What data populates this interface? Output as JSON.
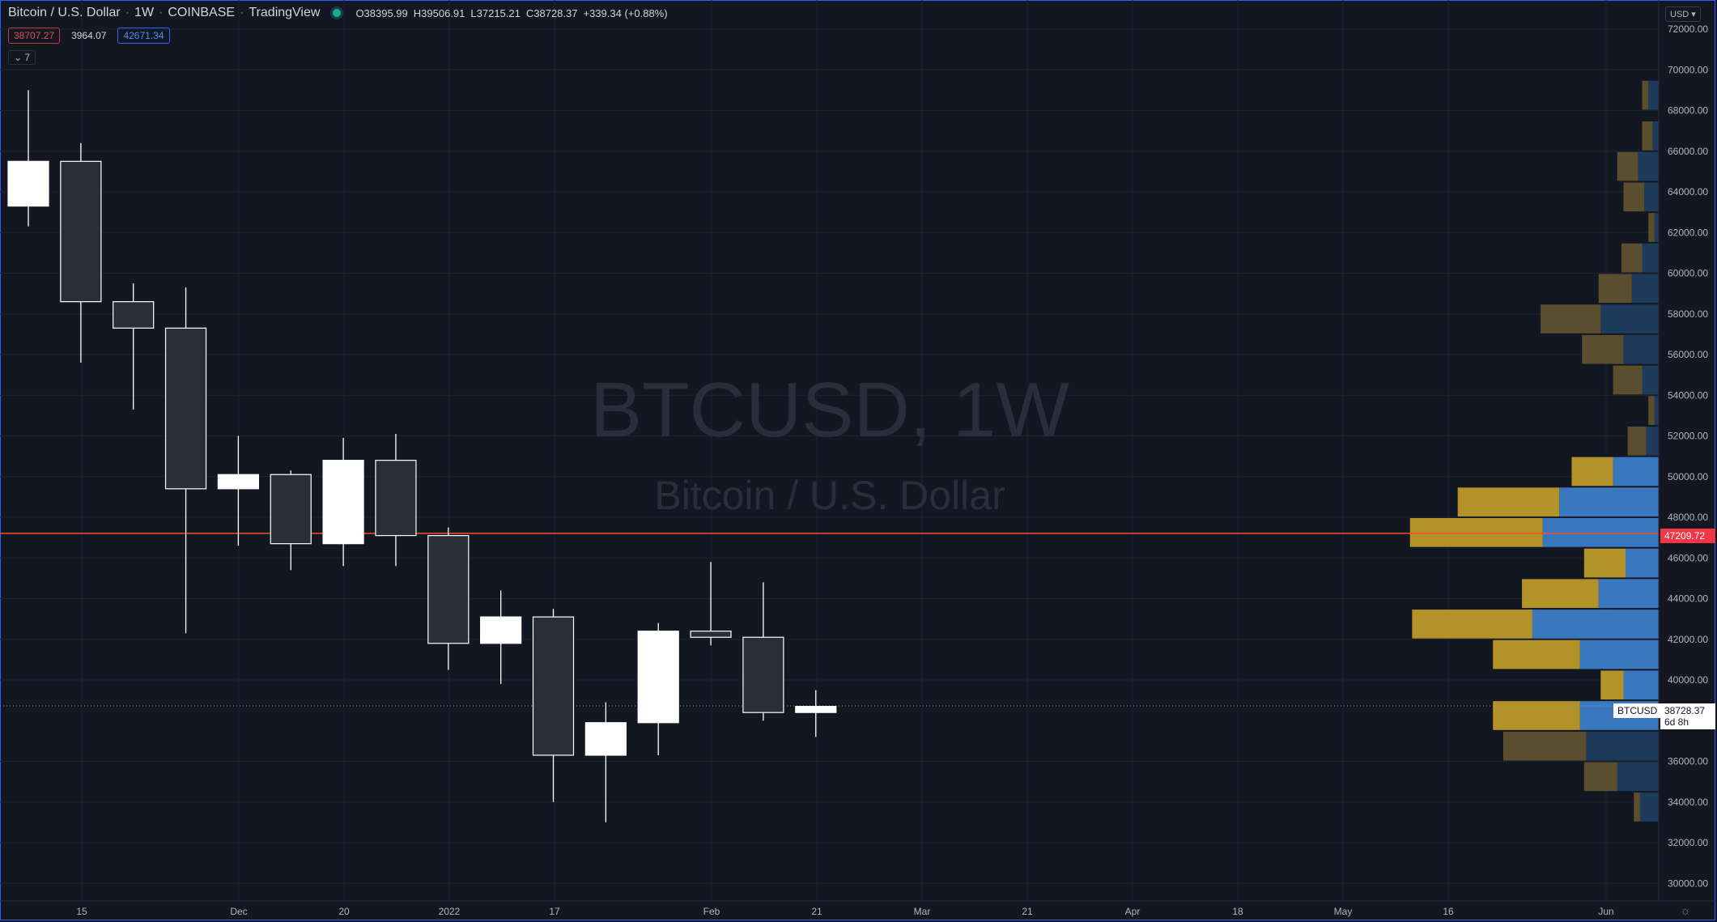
{
  "legend": {
    "symbol": "Bitcoin / U.S. Dollar",
    "interval": "1W",
    "exchange": "COINBASE",
    "source": "TradingView",
    "open": "O38395.99",
    "high": "H39506.91",
    "low": "L37215.21",
    "close": "C38728.37",
    "change": "+339.34 (+0.88%)"
  },
  "volume_profile_legend": {
    "down_value": "38707.27",
    "delta_value": "3964.07",
    "up_value": "42671.34"
  },
  "collapse_button": {
    "label": "7"
  },
  "currency_button": {
    "label": "USD"
  },
  "watermark": {
    "title": "BTCUSD, 1W",
    "subtitle": "Bitcoin / U.S. Dollar"
  },
  "price_tags": {
    "hline_price": "47209.72",
    "last_symbol": "BTCUSD",
    "last_price": "38728.37",
    "countdown": "6d 8h"
  },
  "colors": {
    "background": "#131722",
    "candle_up": "#ffffff",
    "candle_down": "#2a2e39",
    "hline": "#f24f2a",
    "vp_up": "#b39329",
    "vp_down": "#3978bf",
    "vp_up_dim": "#5a4e2e",
    "vp_down_dim": "#1f3b5c"
  },
  "chart_data": {
    "type": "candlestick",
    "x_tick_labels": [
      "15",
      "Dec",
      "20",
      "2022",
      "17",
      "Feb",
      "21",
      "Mar",
      "21",
      "Apr",
      "18",
      "May",
      "16",
      "Jun"
    ],
    "y_tick_labels": [
      "72000.00",
      "70000.00",
      "68000.00",
      "66000.00",
      "64000.00",
      "62000.00",
      "60000.00",
      "58000.00",
      "56000.00",
      "54000.00",
      "52000.00",
      "50000.00",
      "48000.00",
      "46000.00",
      "44000.00",
      "42000.00",
      "40000.00",
      "36000.00",
      "34000.00",
      "32000.00",
      "30000.00"
    ],
    "ylim": [
      29600,
      72800
    ],
    "candles": [
      {
        "o": 63300,
        "h": 69000,
        "l": 62300,
        "c": 65500
      },
      {
        "o": 65500,
        "h": 66400,
        "l": 55600,
        "c": 58600
      },
      {
        "o": 58600,
        "h": 59500,
        "l": 53300,
        "c": 57300
      },
      {
        "o": 57300,
        "h": 59300,
        "l": 42300,
        "c": 49400
      },
      {
        "o": 49400,
        "h": 52000,
        "l": 46600,
        "c": 50100
      },
      {
        "o": 50100,
        "h": 50300,
        "l": 45400,
        "c": 46700
      },
      {
        "o": 46700,
        "h": 51900,
        "l": 45600,
        "c": 50800
      },
      {
        "o": 50800,
        "h": 52100,
        "l": 45600,
        "c": 47100
      },
      {
        "o": 47100,
        "h": 47500,
        "l": 40500,
        "c": 41800
      },
      {
        "o": 41800,
        "h": 44400,
        "l": 39800,
        "c": 43100
      },
      {
        "o": 43100,
        "h": 43500,
        "l": 34000,
        "c": 36300
      },
      {
        "o": 36300,
        "h": 38900,
        "l": 33000,
        "c": 37900
      },
      {
        "o": 37900,
        "h": 42800,
        "l": 36300,
        "c": 42400
      },
      {
        "o": 42400,
        "h": 45800,
        "l": 41700,
        "c": 42100
      },
      {
        "o": 42100,
        "h": 44800,
        "l": 38000,
        "c": 38400
      },
      {
        "o": 38400,
        "h": 39500,
        "l": 37200,
        "c": 38700
      }
    ],
    "horizontal_line": 47209.72,
    "last_price": 38728.37,
    "volume_profile": [
      {
        "price_low": 68000,
        "price_high": 69500,
        "up": 0.3,
        "down": 0.5,
        "dim": true
      },
      {
        "price_low": 66000,
        "price_high": 67500,
        "up": 0.5,
        "down": 0.3,
        "dim": true
      },
      {
        "price_low": 64500,
        "price_high": 66000,
        "up": 1.0,
        "down": 1.0,
        "dim": true
      },
      {
        "price_low": 63000,
        "price_high": 64500,
        "up": 1.0,
        "down": 0.7,
        "dim": true
      },
      {
        "price_low": 61500,
        "price_high": 63000,
        "up": 0.3,
        "down": 0.2,
        "dim": true
      },
      {
        "price_low": 60000,
        "price_high": 61500,
        "up": 1.0,
        "down": 0.8,
        "dim": true
      },
      {
        "price_low": 58500,
        "price_high": 60000,
        "up": 1.6,
        "down": 1.3,
        "dim": true
      },
      {
        "price_low": 57000,
        "price_high": 58500,
        "up": 2.9,
        "down": 2.8,
        "dim": true
      },
      {
        "price_low": 55500,
        "price_high": 57000,
        "up": 2.0,
        "down": 1.7,
        "dim": true
      },
      {
        "price_low": 54000,
        "price_high": 55500,
        "up": 1.4,
        "down": 0.8,
        "dim": true
      },
      {
        "price_low": 52500,
        "price_high": 54000,
        "up": 0.3,
        "down": 0.2,
        "dim": true
      },
      {
        "price_low": 51000,
        "price_high": 52500,
        "up": 0.9,
        "down": 0.6,
        "dim": true
      },
      {
        "price_low": 49500,
        "price_high": 51000,
        "up": 2.0,
        "down": 2.2,
        "dim": false
      },
      {
        "price_low": 48000,
        "price_high": 49500,
        "up": 4.9,
        "down": 4.8,
        "dim": false
      },
      {
        "price_low": 46500,
        "price_high": 48000,
        "up": 6.4,
        "down": 5.6,
        "dim": false
      },
      {
        "price_low": 45000,
        "price_high": 46500,
        "up": 2.0,
        "down": 1.6,
        "dim": false
      },
      {
        "price_low": 43500,
        "price_high": 45000,
        "up": 3.7,
        "down": 2.9,
        "dim": false
      },
      {
        "price_low": 42000,
        "price_high": 43500,
        "up": 5.8,
        "down": 6.1,
        "dim": false
      },
      {
        "price_low": 40500,
        "price_high": 42000,
        "up": 4.2,
        "down": 3.8,
        "dim": false
      },
      {
        "price_low": 39000,
        "price_high": 40500,
        "up": 1.1,
        "down": 1.7,
        "dim": false
      },
      {
        "price_low": 37500,
        "price_high": 39000,
        "up": 4.2,
        "down": 3.8,
        "dim": false
      },
      {
        "price_low": 36000,
        "price_high": 37500,
        "up": 4.0,
        "down": 3.5,
        "dim": true
      },
      {
        "price_low": 34500,
        "price_high": 36000,
        "up": 1.6,
        "down": 2.0,
        "dim": true
      },
      {
        "price_low": 33000,
        "price_high": 34500,
        "up": 0.3,
        "down": 0.9,
        "dim": true
      }
    ]
  }
}
